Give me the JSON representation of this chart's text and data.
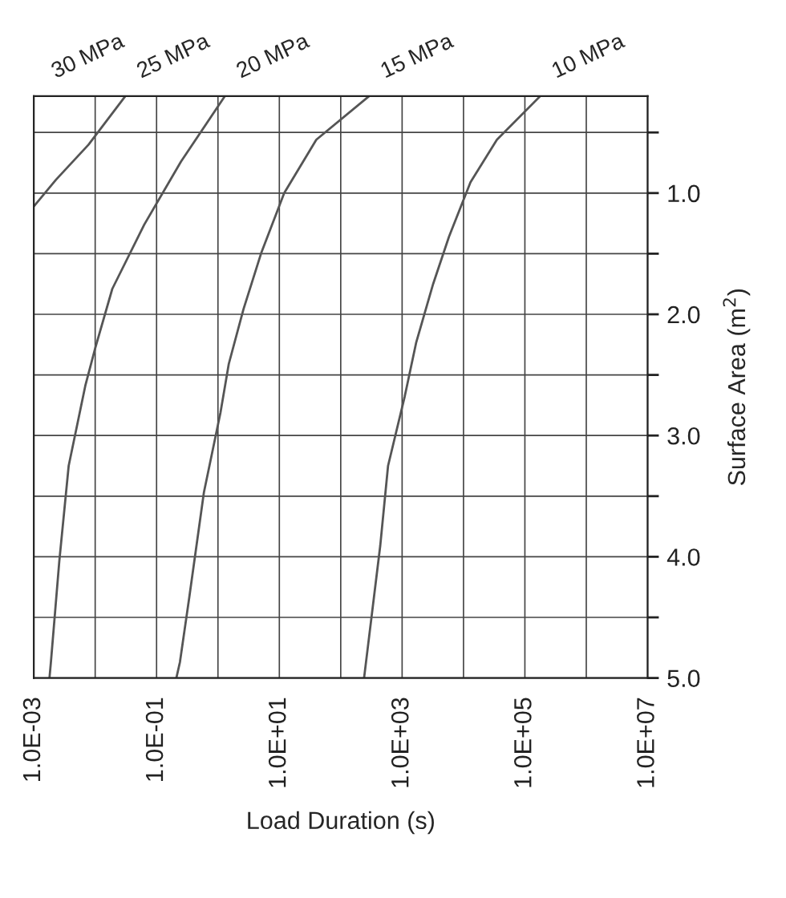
{
  "chart_data": {
    "type": "line",
    "xlabel": "Load Duration (s)",
    "ylabel": "Surface Area (m$^{2}$)",
    "log": "x",
    "grid": true,
    "marker": "none",
    "line_style": "solid",
    "xlim": [
      0.001,
      10000000
    ],
    "ylim": [
      5.0,
      0.2
    ],
    "xticks": [
      {
        "value": 0.001,
        "label": "1.0E-03"
      },
      {
        "value": 0.01,
        "label": null
      },
      {
        "value": 0.1,
        "label": "1.0E-01"
      },
      {
        "value": 1,
        "label": null
      },
      {
        "value": 10,
        "label": "1.0E+01"
      },
      {
        "value": 100,
        "label": null
      },
      {
        "value": 1000,
        "label": "1.0E+03"
      },
      {
        "value": 10000,
        "label": null
      },
      {
        "value": 100000,
        "label": "1.0E+05"
      },
      {
        "value": 1000000,
        "label": null
      },
      {
        "value": 10000000,
        "label": "1.0E+07"
      }
    ],
    "yticks": [
      {
        "value": 0.5,
        "label": null
      },
      {
        "value": 1.0,
        "label": "1.0"
      },
      {
        "value": 1.5,
        "label": null
      },
      {
        "value": 2.0,
        "label": "2.0"
      },
      {
        "value": 2.5,
        "label": null
      },
      {
        "value": 3.0,
        "label": "3.0"
      },
      {
        "value": 3.5,
        "label": null
      },
      {
        "value": 4.0,
        "label": "4.0"
      },
      {
        "value": 4.5,
        "label": null
      },
      {
        "value": 5.0,
        "label": "5.0"
      }
    ],
    "series": [
      {
        "name": "25 MPa",
        "color": "#555555",
        "x": [
          0.031,
          0.0078,
          0.0023,
          0.001
        ],
        "values": [
          0.2,
          0.6,
          0.89,
          1.11
        ]
      },
      {
        "name": "20 MPa",
        "color": "#555555",
        "x": [
          1.3,
          0.25,
          0.063,
          0.019,
          0.01,
          0.0069,
          0.0037,
          0.0026,
          0.0019,
          0.0018
        ],
        "values": [
          0.2,
          0.74,
          1.26,
          1.79,
          2.28,
          2.59,
          3.25,
          4.04,
          4.87,
          5.0
        ]
      },
      {
        "name": "15 MPa",
        "color": "#555555",
        "x": [
          290,
          40,
          12,
          5.1,
          2.6,
          1.5,
          1.1,
          0.59,
          0.34,
          0.24,
          0.21
        ],
        "values": [
          0.2,
          0.56,
          1.0,
          1.49,
          1.96,
          2.41,
          2.81,
          3.47,
          4.34,
          4.87,
          5.0
        ]
      },
      {
        "name": "10 MPa",
        "color": "#555555",
        "x": [
          178000,
          35000,
          13000,
          5800,
          3200,
          1700,
          1100,
          590,
          440,
          290,
          240
        ],
        "values": [
          0.2,
          0.56,
          0.91,
          1.36,
          1.75,
          2.23,
          2.68,
          3.25,
          3.91,
          4.66,
          5.0
        ]
      }
    ],
    "annotations": [
      "30 MPa"
    ]
  }
}
